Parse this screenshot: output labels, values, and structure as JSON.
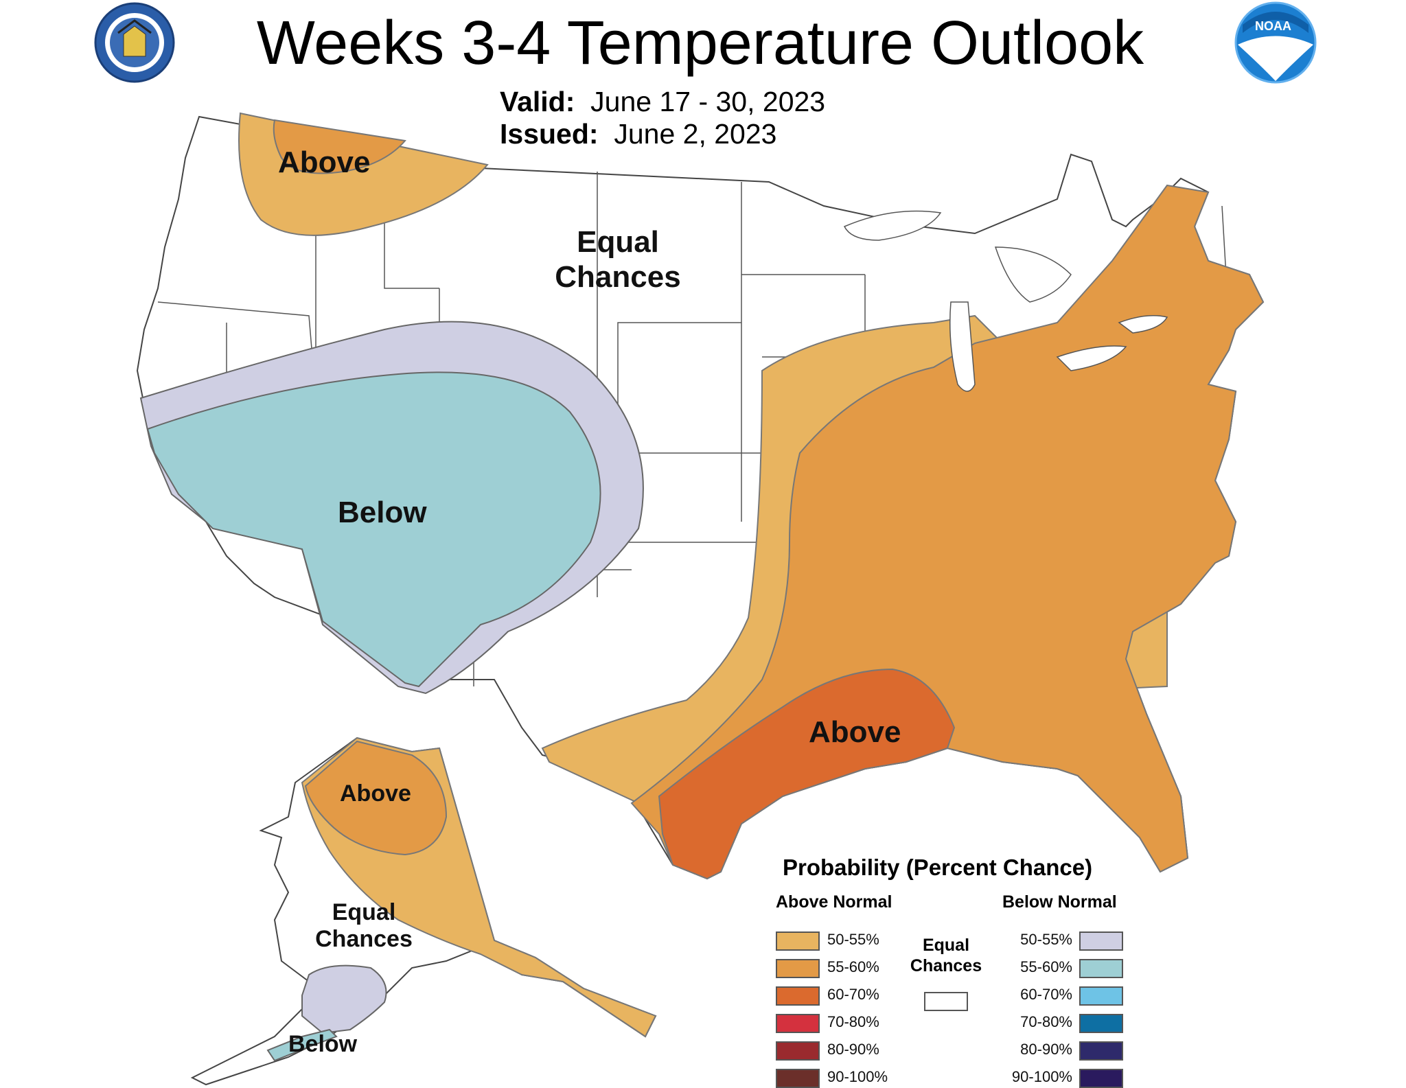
{
  "header": {
    "title": "Weeks 3-4 Temperature Outlook",
    "valid_label": "Valid:",
    "valid_value": "June 17 - 30, 2023",
    "issued_label": "Issued:",
    "issued_value": "June 2, 2023"
  },
  "logos": {
    "commerce": "department-of-commerce-seal",
    "noaa": "NOAA"
  },
  "map_labels": {
    "nw_above": "Above",
    "equal_line1": "Equal",
    "equal_line2": "Chances",
    "below": "Below",
    "gulf_above": "Above",
    "ak_above": "Above",
    "ak_equal_line1": "Equal",
    "ak_equal_line2": "Chances",
    "ak_below": "Below"
  },
  "colors": {
    "above_50_55": "#E8B460",
    "above_55_60": "#E39A46",
    "above_60_70": "#DB6A2E",
    "above_70_80": "#D4313E",
    "above_80_90": "#9A2A2E",
    "above_90_100": "#6B2F2A",
    "below_50_55": "#CFCFE3",
    "below_55_60": "#9ECFD4",
    "below_60_70": "#6EC3E6",
    "below_70_80": "#0E6FA3",
    "below_80_90": "#2E2A6B",
    "below_90_100": "#2A1A5E",
    "equal": "#FFFFFF"
  },
  "legend": {
    "title": "Probability (Percent Chance)",
    "above_header": "Above Normal",
    "below_header": "Below Normal",
    "equal_line1": "Equal",
    "equal_line2": "Chances",
    "above_items": [
      {
        "label": "50-55%",
        "color": "#E8B460"
      },
      {
        "label": "55-60%",
        "color": "#E39A46"
      },
      {
        "label": "60-70%",
        "color": "#DB6A2E"
      },
      {
        "label": "70-80%",
        "color": "#D4313E"
      },
      {
        "label": "80-90%",
        "color": "#9A2A2E"
      },
      {
        "label": "90-100%",
        "color": "#6B2F2A"
      }
    ],
    "below_items": [
      {
        "label": "50-55%",
        "color": "#CFCFE3"
      },
      {
        "label": "55-60%",
        "color": "#9ECFD4"
      },
      {
        "label": "60-70%",
        "color": "#6EC3E6"
      },
      {
        "label": "70-80%",
        "color": "#0E6FA3"
      },
      {
        "label": "80-90%",
        "color": "#2E2A6B"
      },
      {
        "label": "90-100%",
        "color": "#2A1A5E"
      }
    ]
  }
}
